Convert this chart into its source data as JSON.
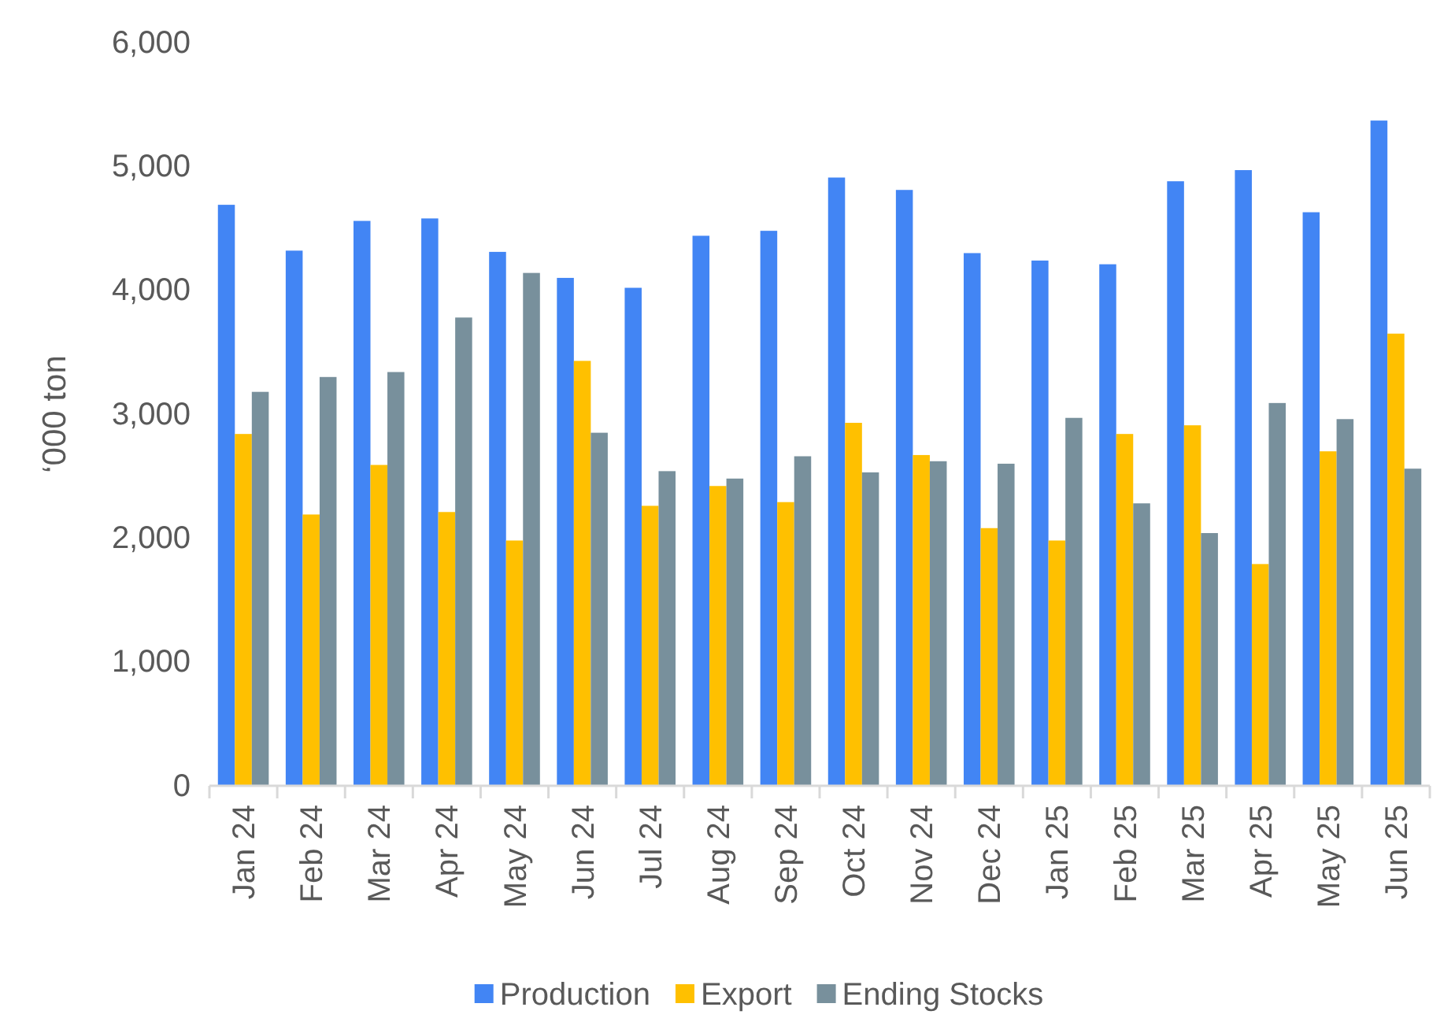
{
  "chart_data": {
    "type": "bar",
    "ylabel": "‘000 ton",
    "categories": [
      "Jan 24",
      "Feb 24",
      "Mar 24",
      "Apr 24",
      "May 24",
      "Jun 24",
      "Jul 24",
      "Aug 24",
      "Sep 24",
      "Oct 24",
      "Nov 24",
      "Dec 24",
      "Jan 25",
      "Feb 25",
      "Mar 25",
      "Apr 25",
      "May 25",
      "Jun 25"
    ],
    "series": [
      {
        "name": "Production",
        "color": "#4285f4",
        "values": [
          4690,
          4320,
          4560,
          4580,
          4310,
          4100,
          4020,
          4440,
          4480,
          4910,
          4810,
          4300,
          4240,
          4210,
          4880,
          4970,
          4630,
          5370
        ]
      },
      {
        "name": "Export",
        "color": "#ffc000",
        "values": [
          2840,
          2190,
          2590,
          2210,
          1980,
          3430,
          2260,
          2420,
          2290,
          2930,
          2670,
          2080,
          1980,
          2840,
          2910,
          1790,
          2700,
          3650
        ]
      },
      {
        "name": "Ending Stocks",
        "color": "#78909c",
        "values": [
          3180,
          3300,
          3340,
          3780,
          4140,
          2850,
          2540,
          2480,
          2660,
          2530,
          2620,
          2600,
          2970,
          2280,
          2040,
          3090,
          2960,
          2560
        ]
      }
    ],
    "ylim": [
      0,
      6000
    ],
    "yticks": [
      {
        "value": 0,
        "label": "0"
      },
      {
        "value": 1000,
        "label": "1,000"
      },
      {
        "value": 2000,
        "label": "2,000"
      },
      {
        "value": 3000,
        "label": "3,000"
      },
      {
        "value": 4000,
        "label": "4,000"
      },
      {
        "value": 5000,
        "label": "5,000"
      },
      {
        "value": 6000,
        "label": "6,000"
      }
    ],
    "grid": false,
    "legend": "bottom"
  }
}
